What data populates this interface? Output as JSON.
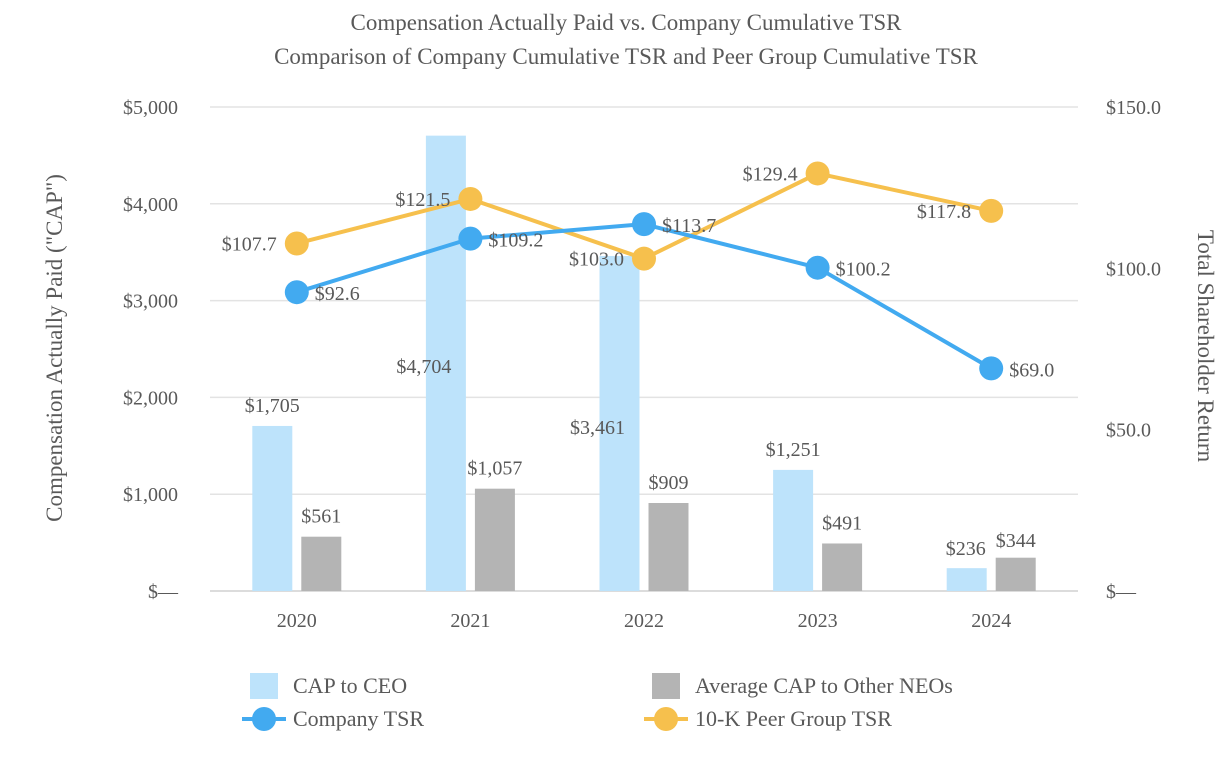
{
  "chart_data": {
    "type": "bar",
    "title": "Compensation Actually Paid vs. Company Cumulative TSR",
    "subtitle": "Comparison of Company Cumulative TSR and Peer Group Cumulative TSR",
    "ylabel": "Compensation Actually Paid (\"CAP\")",
    "y2label": "Total Shareholder Return",
    "categories": [
      "2020",
      "2021",
      "2022",
      "2023",
      "2024"
    ],
    "ylim": [
      0,
      5000
    ],
    "y2lim": [
      0,
      150
    ],
    "yticks": [
      "$—",
      "$1,000",
      "$2,000",
      "$3,000",
      "$4,000",
      "$5,000"
    ],
    "y2ticks": [
      "$—",
      "$50.0",
      "$100.0",
      "$150.0"
    ],
    "grid": true,
    "legend_position": "bottom",
    "series": [
      {
        "name": "CAP to CEO",
        "kind": "bar",
        "axis": "left",
        "color": "#bde3fb",
        "values": [
          1705,
          4704,
          3461,
          1251,
          236
        ],
        "labels": [
          "$1,705",
          "$4,704",
          "$3,461",
          "$1,251",
          "$236"
        ]
      },
      {
        "name": "Average CAP to Other NEOs",
        "kind": "bar",
        "axis": "left",
        "color": "#b4b4b4",
        "values": [
          561,
          1057,
          909,
          491,
          344
        ],
        "labels": [
          "$561",
          "$1,057",
          "$909",
          "$491",
          "$344"
        ]
      },
      {
        "name": "Company TSR",
        "kind": "line",
        "axis": "right",
        "color": "#42aaf0",
        "values": [
          92.6,
          109.2,
          113.7,
          100.2,
          69.0
        ],
        "labels": [
          "$92.6",
          "$109.2",
          "$113.7",
          "$100.2",
          "$69.0"
        ]
      },
      {
        "name": "10-K Peer Group TSR",
        "kind": "line",
        "axis": "right",
        "color": "#f6c04d",
        "values": [
          107.7,
          121.5,
          103.0,
          129.4,
          117.8
        ],
        "labels": [
          "$107.7",
          "$121.5",
          "$103.0",
          "$129.4",
          "$117.8"
        ]
      }
    ]
  }
}
